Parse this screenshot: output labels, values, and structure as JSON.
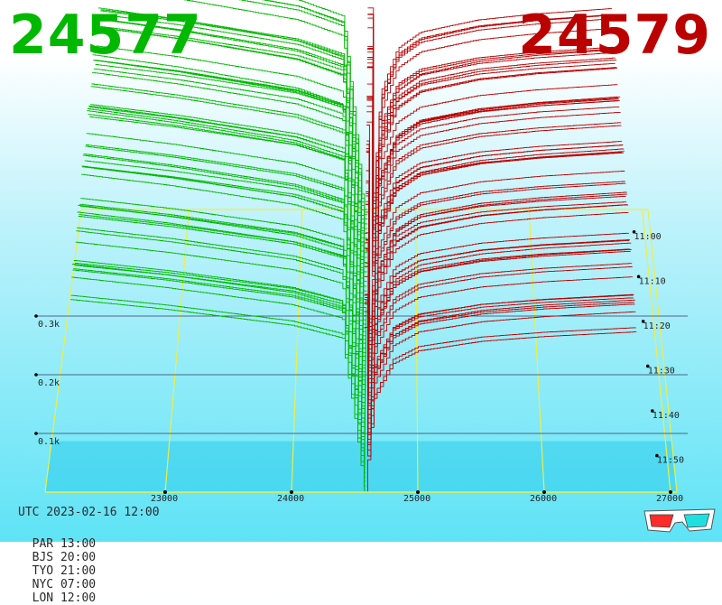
{
  "header": {
    "bid_price": "24577",
    "ask_price": "24579",
    "bid_color": "#00b800",
    "ask_color": "#bb0000"
  },
  "footer": {
    "utc_time": "UTC 2023-02-16 12:00",
    "zones": [
      {
        "label": "PAR 13:00"
      },
      {
        "label": "BJS 20:00"
      },
      {
        "label": "TYO 21:00"
      },
      {
        "label": "NYC 07:00"
      },
      {
        "label": "LON 12:00"
      }
    ],
    "icon": "3d-glasses-icon"
  },
  "chart_data": {
    "type": "area",
    "x_ticks": [
      23000,
      24000,
      25000,
      26000,
      27000
    ],
    "x_tick_labels": [
      "23000",
      "24000",
      "25000",
      "26000",
      "27000"
    ],
    "xlim": [
      22050,
      27050
    ],
    "mid_price": 24578,
    "y_ticks": [
      100,
      200,
      300
    ],
    "y_tick_labels": [
      "0.1k",
      "0.2k",
      "0.3k"
    ],
    "time_labels": [
      "11:00",
      "11:10",
      "11:20",
      "11:30",
      "11:40",
      "11:50"
    ],
    "time_range_minutes": [
      0,
      60
    ],
    "snapshot_count": 60,
    "bid_depth_profile": [
      {
        "price": 22250,
        "volume": 600
      },
      {
        "price": 23000,
        "volume": 570
      },
      {
        "price": 23500,
        "volume": 545
      },
      {
        "price": 24000,
        "volume": 520
      },
      {
        "price": 24400,
        "volume": 480
      },
      {
        "price": 24500,
        "volume": 230
      },
      {
        "price": 24578,
        "volume": 0
      }
    ],
    "ask_depth_profile": [
      {
        "price": 24578,
        "volume": 0
      },
      {
        "price": 24650,
        "volume": 290
      },
      {
        "price": 24800,
        "volume": 400
      },
      {
        "price": 25000,
        "volume": 440
      },
      {
        "price": 25500,
        "volume": 470
      },
      {
        "price": 26000,
        "volume": 485
      },
      {
        "price": 26750,
        "volume": 500
      }
    ],
    "bid_color": "#00b800",
    "ask_color": "#bb0000",
    "grid_color": "#eeee44",
    "grid": true,
    "legend": "none"
  }
}
